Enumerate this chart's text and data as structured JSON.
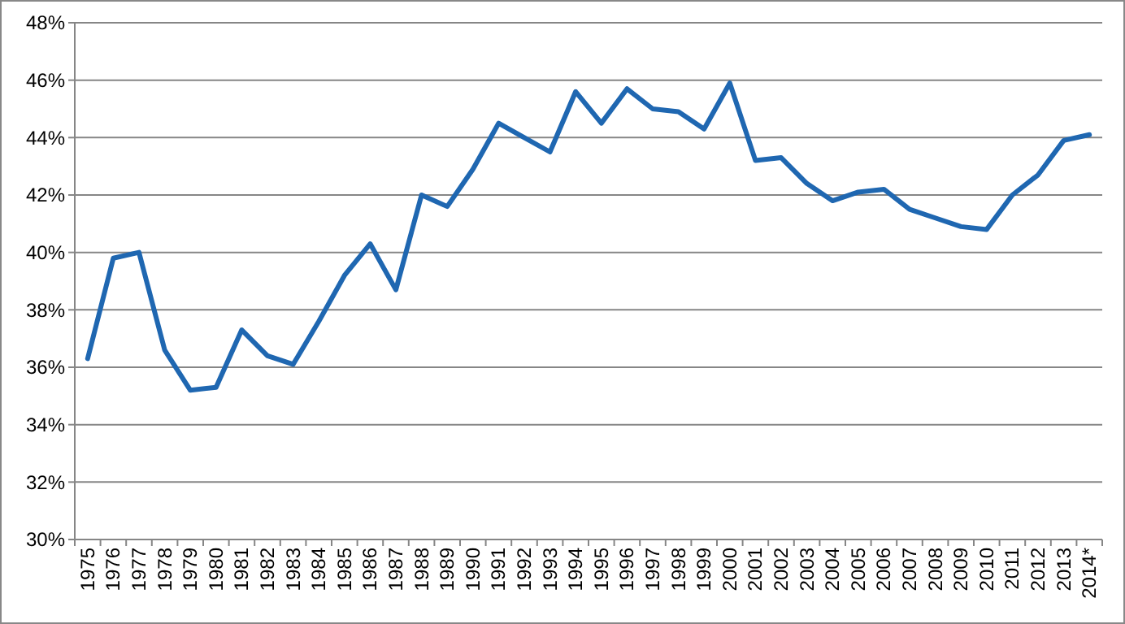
{
  "chart_data": {
    "type": "line",
    "categories": [
      "1975",
      "1976",
      "1977",
      "1978",
      "1979",
      "1980",
      "1981",
      "1982",
      "1983",
      "1984",
      "1985",
      "1986",
      "1987",
      "1988",
      "1989",
      "1990",
      "1991",
      "1992",
      "1993",
      "1994",
      "1995",
      "1996",
      "1997",
      "1998",
      "1999",
      "2000",
      "2001",
      "2002",
      "2003",
      "2004",
      "2005",
      "2006",
      "2007",
      "2008",
      "2009",
      "2010",
      "2011",
      "2012",
      "2013",
      "2014*"
    ],
    "series": [
      {
        "color": "#1f67b1",
        "values": [
          36.3,
          39.8,
          40.0,
          36.6,
          35.2,
          35.3,
          37.3,
          36.4,
          36.1,
          37.6,
          39.2,
          40.3,
          38.7,
          42.0,
          41.6,
          42.9,
          44.5,
          44.0,
          43.5,
          45.6,
          44.5,
          45.7,
          45.0,
          44.9,
          44.3,
          45.9,
          43.2,
          43.3,
          42.4,
          41.8,
          42.1,
          42.2,
          41.5,
          41.2,
          40.9,
          40.8,
          42.0,
          42.7,
          43.9,
          44.1
        ]
      }
    ],
    "ylim": [
      30,
      48
    ],
    "yticks": [
      {
        "value": 30,
        "label": "30%"
      },
      {
        "value": 32,
        "label": "32%"
      },
      {
        "value": 34,
        "label": "34%"
      },
      {
        "value": 36,
        "label": "36%"
      },
      {
        "value": 38,
        "label": "38%"
      },
      {
        "value": 40,
        "label": "40%"
      },
      {
        "value": 42,
        "label": "42%"
      },
      {
        "value": 44,
        "label": "44%"
      },
      {
        "value": 46,
        "label": "46%"
      },
      {
        "value": 48,
        "label": "48%"
      }
    ],
    "grid": "y",
    "marker": "none",
    "line_style": "solid"
  }
}
